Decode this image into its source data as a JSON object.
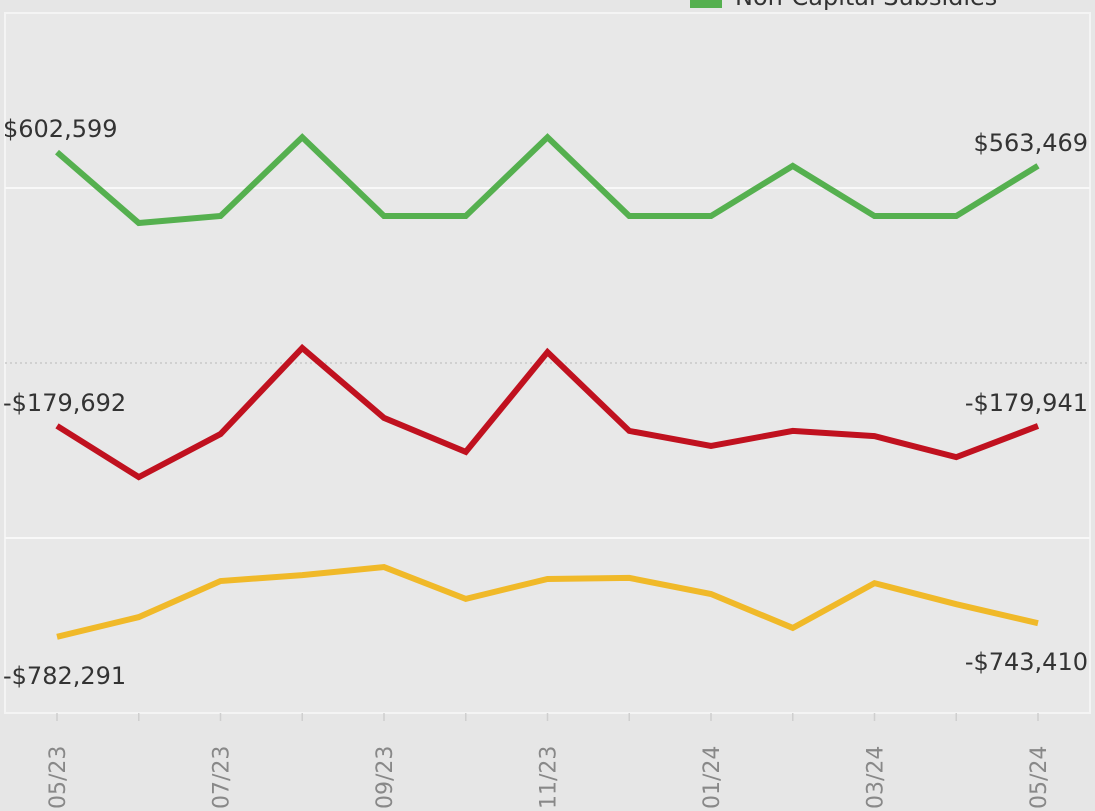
{
  "chart_data": {
    "type": "line",
    "categories": [
      "05/23",
      null,
      "07/23",
      null,
      "09/23",
      null,
      "11/23",
      null,
      "01/24",
      null,
      "03/24",
      null,
      "05/24"
    ],
    "series": [
      {
        "name": "Non-Capital Subsidies",
        "color": "#55b04f",
        "values": [
          602599,
          400000,
          420000,
          645000,
          420000,
          420000,
          645000,
          420000,
          420000,
          563000,
          420000,
          420000,
          563469
        ],
        "value_labels": [
          "$602,599",
          null,
          null,
          null,
          null,
          null,
          null,
          null,
          null,
          null,
          null,
          null,
          "$563,469"
        ]
      },
      {
        "color": "#c0111f",
        "values": [
          -179692,
          -326000,
          -203000,
          43000,
          -157000,
          -254000,
          31000,
          -194000,
          -237000,
          -194000,
          -209000,
          -269000,
          -179941
        ],
        "value_labels": [
          "-$179,692",
          null,
          null,
          null,
          null,
          null,
          null,
          null,
          null,
          null,
          null,
          null,
          "-$179,941"
        ]
      },
      {
        "color": "#f0b929",
        "values": [
          -782291,
          -726000,
          -623000,
          -606000,
          -583000,
          -674000,
          -617000,
          -614000,
          -660000,
          -757000,
          -629000,
          -689000,
          -743410
        ],
        "value_labels": [
          "-$782,291",
          null,
          null,
          null,
          null,
          null,
          null,
          null,
          null,
          null,
          null,
          null,
          "-$743,410"
        ]
      }
    ],
    "ylim": [
      -1000000,
      1000000
    ],
    "yticks": [
      -500000,
      0,
      500000
    ],
    "grid": true
  }
}
